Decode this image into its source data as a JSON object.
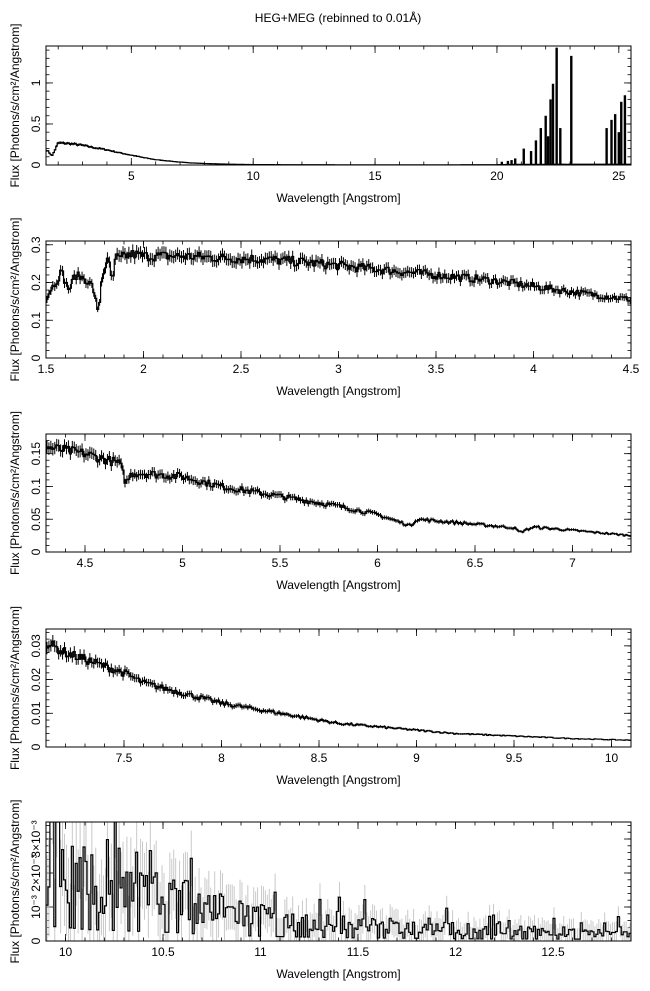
{
  "title": "HEG+MEG (rebinned to 0.01Å)",
  "chart_data": [
    {
      "type": "line",
      "xlabel": "Wavelength [Angstrom]",
      "ylabel": "Flux [Photons/s/cm²/Angstrom]",
      "xlim": [
        1.5,
        25.5
      ],
      "ylim": [
        0,
        1.45
      ],
      "xticks": [
        5,
        10,
        15,
        20,
        25
      ],
      "yticks": [
        0,
        0.5,
        1
      ],
      "ytick_labels": [
        "0",
        "0.5",
        "1"
      ],
      "series": [
        {
          "x": [
            1.55,
            1.75,
            2.0,
            2.5,
            3.0,
            3.5,
            4.0,
            4.5,
            5.0,
            5.5,
            6.0,
            6.5,
            7.0,
            7.5,
            8.0,
            9.0,
            10.0,
            12.0,
            15.0,
            18.0,
            20.0,
            20.5,
            21.0,
            25.5
          ],
          "y": [
            0.18,
            0.11,
            0.27,
            0.26,
            0.24,
            0.21,
            0.185,
            0.15,
            0.12,
            0.09,
            0.065,
            0.05,
            0.035,
            0.025,
            0.018,
            0.01,
            0.005,
            0.003,
            0.002,
            0.002,
            0.004,
            0.006,
            0.008,
            0.01
          ]
        }
      ],
      "lines": [
        {
          "x": 20.2,
          "y": 0.04
        },
        {
          "x": 20.45,
          "y": 0.05
        },
        {
          "x": 20.6,
          "y": 0.06
        },
        {
          "x": 20.75,
          "y": 0.08
        },
        {
          "x": 21.1,
          "y": 0.2
        },
        {
          "x": 21.4,
          "y": 0.17
        },
        {
          "x": 21.6,
          "y": 0.3
        },
        {
          "x": 21.8,
          "y": 0.45
        },
        {
          "x": 22.0,
          "y": 0.6
        },
        {
          "x": 22.1,
          "y": 0.35
        },
        {
          "x": 22.2,
          "y": 0.8
        },
        {
          "x": 22.3,
          "y": 0.99
        },
        {
          "x": 22.45,
          "y": 1.43
        },
        {
          "x": 22.6,
          "y": 0.45
        },
        {
          "x": 23.05,
          "y": 1.33
        },
        {
          "x": 24.5,
          "y": 0.45
        },
        {
          "x": 24.7,
          "y": 0.55
        },
        {
          "x": 24.85,
          "y": 0.62
        },
        {
          "x": 25.0,
          "y": 0.4
        },
        {
          "x": 25.1,
          "y": 0.77
        },
        {
          "x": 25.25,
          "y": 0.85
        }
      ]
    },
    {
      "type": "line",
      "xlabel": "Wavelength [Angstrom]",
      "ylabel": "Flux [Photons/s/cm²/Angstrom]",
      "xlim": [
        1.5,
        4.5
      ],
      "ylim": [
        0,
        0.31
      ],
      "xticks": [
        1.5,
        2,
        2.5,
        3,
        3.5,
        4,
        4.5
      ],
      "yticks": [
        0,
        0.1,
        0.2,
        0.3
      ],
      "ytick_labels": [
        "0",
        "0.1",
        "0.2",
        "0.3"
      ],
      "series": [
        {
          "x": [
            1.5,
            1.52,
            1.55,
            1.58,
            1.6,
            1.62,
            1.65,
            1.7,
            1.74,
            1.76,
            1.77,
            1.78,
            1.8,
            1.82,
            1.84,
            1.86,
            1.88,
            1.9,
            1.95,
            2.0,
            2.2,
            2.4,
            2.6,
            2.8,
            3.0,
            3.2,
            3.5,
            3.8,
            4.0,
            4.2,
            4.5
          ],
          "y": [
            0.15,
            0.18,
            0.2,
            0.23,
            0.2,
            0.18,
            0.22,
            0.21,
            0.19,
            0.14,
            0.11,
            0.19,
            0.24,
            0.26,
            0.2,
            0.27,
            0.26,
            0.27,
            0.275,
            0.27,
            0.27,
            0.265,
            0.262,
            0.255,
            0.245,
            0.235,
            0.22,
            0.205,
            0.19,
            0.175,
            0.155
          ]
        }
      ]
    },
    {
      "type": "line",
      "xlabel": "Wavelength [Angstrom]",
      "ylabel": "Flux [Photons/s/cm²/Angstrom]",
      "xlim": [
        4.3,
        7.3
      ],
      "ylim": [
        0,
        0.18
      ],
      "xticks": [
        4.5,
        5,
        5.5,
        6,
        6.5,
        7
      ],
      "yticks": [
        0,
        0.05,
        0.1,
        0.15
      ],
      "ytick_labels": [
        "0",
        "0.05",
        "0.1",
        "0.15"
      ],
      "series": [
        {
          "x": [
            4.3,
            4.5,
            4.68,
            4.71,
            4.74,
            4.8,
            5.0,
            5.2,
            5.5,
            5.8,
            6.0,
            6.17,
            6.2,
            6.4,
            6.7,
            6.73,
            6.8,
            7.0,
            7.3
          ],
          "y": [
            0.16,
            0.15,
            0.135,
            0.105,
            0.12,
            0.12,
            0.115,
            0.1,
            0.085,
            0.07,
            0.057,
            0.04,
            0.05,
            0.045,
            0.037,
            0.03,
            0.038,
            0.033,
            0.025
          ]
        }
      ]
    },
    {
      "type": "line",
      "xlabel": "Wavelength [Angstrom]",
      "ylabel": "Flux [Photons/s/cm²/Angstrom]",
      "xlim": [
        7.1,
        10.1
      ],
      "ylim": [
        0,
        0.035
      ],
      "xticks": [
        7.5,
        8,
        8.5,
        9,
        9.5,
        10
      ],
      "yticks": [
        0,
        0.01,
        0.02,
        0.03
      ],
      "ytick_labels": [
        "0",
        "0.01",
        "0.02",
        "0.03"
      ],
      "series": [
        {
          "x": [
            7.1,
            7.2,
            7.3,
            7.4,
            7.5,
            7.6,
            7.8,
            8.0,
            8.2,
            8.4,
            8.6,
            8.8,
            9.0,
            9.2,
            9.4,
            9.6,
            9.8,
            10.1
          ],
          "y": [
            0.031,
            0.028,
            0.026,
            0.024,
            0.022,
            0.019,
            0.016,
            0.013,
            0.011,
            0.009,
            0.007,
            0.006,
            0.005,
            0.004,
            0.0035,
            0.003,
            0.0025,
            0.002
          ]
        }
      ]
    },
    {
      "type": "line",
      "xlabel": "Wavelength [Angstrom]",
      "ylabel": "Flux [Photons/s/cm²/Angstrom]",
      "xlim": [
        9.9,
        12.9
      ],
      "ylim": [
        0,
        0.0035
      ],
      "xticks": [
        10,
        10.5,
        11,
        11.5,
        12,
        12.5
      ],
      "yticks": [
        0,
        0.001,
        0.002,
        0.003
      ],
      "ytick_labels": [
        "0",
        "10⁻³",
        "2×10⁻³",
        "3×10⁻³"
      ],
      "series": [
        {
          "x": [
            9.9,
            10.0,
            10.1,
            10.2,
            10.3,
            10.4,
            10.5,
            10.6,
            10.7,
            10.8,
            10.9,
            11.0,
            11.2,
            11.4,
            11.6,
            11.8,
            12.0,
            12.2,
            12.4,
            12.6,
            12.9
          ],
          "y": [
            0.0022,
            0.002,
            0.0017,
            0.0016,
            0.0015,
            0.0014,
            0.0013,
            0.0012,
            0.001,
            0.0009,
            0.0008,
            0.0007,
            0.0006,
            0.0005,
            0.00045,
            0.0004,
            0.00035,
            0.0003,
            0.0003,
            0.00028,
            0.00025
          ]
        }
      ]
    }
  ]
}
